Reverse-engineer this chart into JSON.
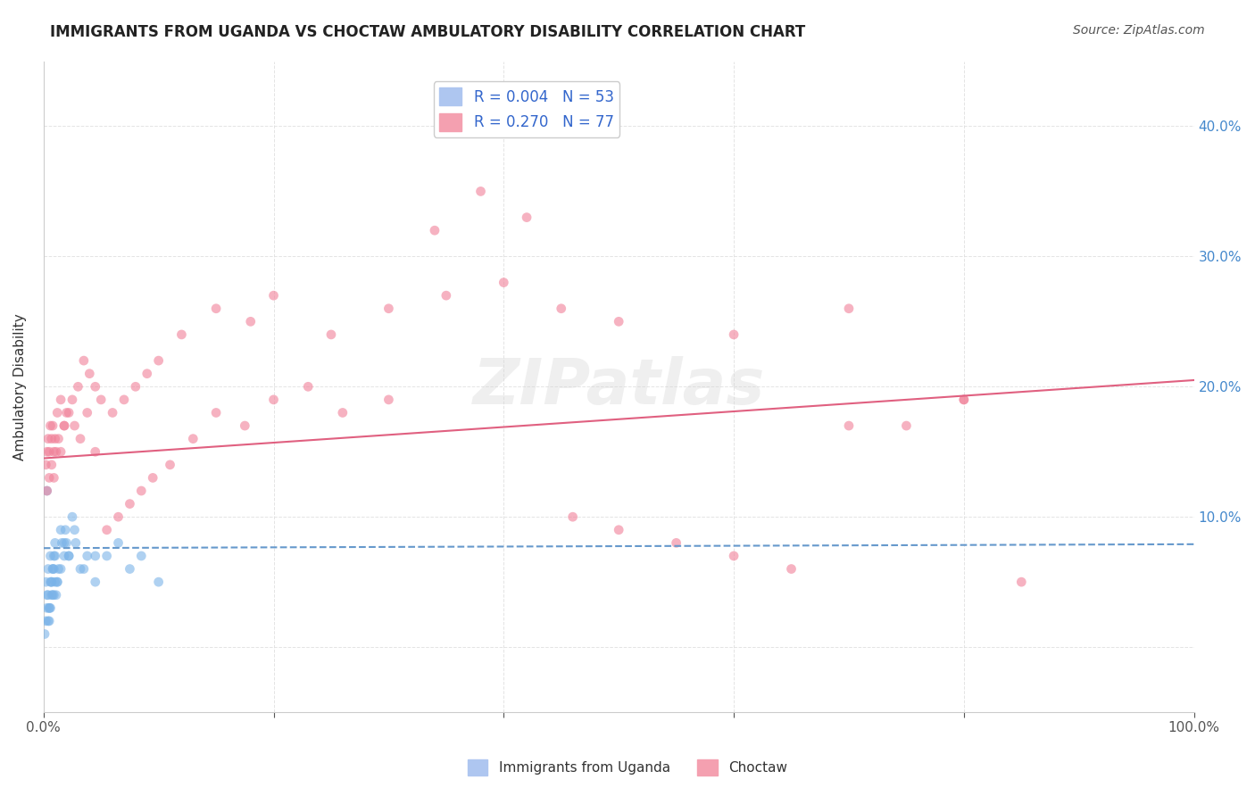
{
  "title": "IMMIGRANTS FROM UGANDA VS CHOCTAW AMBULATORY DISABILITY CORRELATION CHART",
  "source": "Source: ZipAtlas.com",
  "ylabel": "Ambulatory Disability",
  "xlabel": "",
  "xlim": [
    0,
    1.0
  ],
  "ylim": [
    -0.05,
    0.45
  ],
  "yticks": [
    0.0,
    0.1,
    0.2,
    0.3,
    0.4
  ],
  "ytick_labels": [
    "",
    "10.0%",
    "20.0%",
    "30.0%",
    "40.0%"
  ],
  "xticks": [
    0.0,
    0.2,
    0.4,
    0.6,
    0.8,
    1.0
  ],
  "xtick_labels": [
    "0.0%",
    "",
    "",
    "",
    "",
    "100.0%"
  ],
  "legend_entries": [
    {
      "label": "R = 0.004   N = 53",
      "color": "#aec6f0"
    },
    {
      "label": "R = 0.270   N = 77",
      "color": "#f4a0b0"
    }
  ],
  "blue_scatter_x": [
    0.002,
    0.003,
    0.004,
    0.005,
    0.006,
    0.007,
    0.008,
    0.009,
    0.01,
    0.012,
    0.015,
    0.018,
    0.02,
    0.025,
    0.003,
    0.004,
    0.005,
    0.006,
    0.007,
    0.008,
    0.009,
    0.01,
    0.011,
    0.013,
    0.016,
    0.019,
    0.022,
    0.028,
    0.035,
    0.045,
    0.001,
    0.002,
    0.003,
    0.004,
    0.005,
    0.006,
    0.007,
    0.008,
    0.009,
    0.01,
    0.012,
    0.015,
    0.018,
    0.022,
    0.027,
    0.032,
    0.038,
    0.045,
    0.055,
    0.065,
    0.075,
    0.085,
    0.1
  ],
  "blue_scatter_y": [
    0.05,
    0.04,
    0.06,
    0.03,
    0.07,
    0.05,
    0.04,
    0.06,
    0.08,
    0.05,
    0.09,
    0.07,
    0.08,
    0.1,
    0.12,
    0.02,
    0.03,
    0.05,
    0.04,
    0.06,
    0.07,
    0.05,
    0.04,
    0.06,
    0.08,
    0.09,
    0.07,
    0.08,
    0.06,
    0.07,
    0.01,
    0.02,
    0.03,
    0.04,
    0.02,
    0.03,
    0.05,
    0.06,
    0.04,
    0.07,
    0.05,
    0.06,
    0.08,
    0.07,
    0.09,
    0.06,
    0.07,
    0.05,
    0.07,
    0.08,
    0.06,
    0.07,
    0.05
  ],
  "pink_scatter_x": [
    0.002,
    0.003,
    0.004,
    0.005,
    0.006,
    0.007,
    0.008,
    0.009,
    0.01,
    0.012,
    0.015,
    0.018,
    0.02,
    0.025,
    0.03,
    0.035,
    0.04,
    0.045,
    0.05,
    0.06,
    0.07,
    0.08,
    0.09,
    0.1,
    0.12,
    0.15,
    0.18,
    0.2,
    0.25,
    0.3,
    0.35,
    0.4,
    0.45,
    0.5,
    0.6,
    0.7,
    0.8,
    0.003,
    0.005,
    0.007,
    0.009,
    0.011,
    0.013,
    0.015,
    0.018,
    0.022,
    0.027,
    0.032,
    0.038,
    0.045,
    0.055,
    0.065,
    0.075,
    0.085,
    0.095,
    0.11,
    0.13,
    0.15,
    0.175,
    0.2,
    0.23,
    0.26,
    0.3,
    0.34,
    0.38,
    0.42,
    0.46,
    0.5,
    0.55,
    0.6,
    0.65,
    0.7,
    0.75,
    0.8,
    0.85
  ],
  "pink_scatter_y": [
    0.14,
    0.15,
    0.16,
    0.15,
    0.17,
    0.16,
    0.17,
    0.15,
    0.16,
    0.18,
    0.19,
    0.17,
    0.18,
    0.19,
    0.2,
    0.22,
    0.21,
    0.2,
    0.19,
    0.18,
    0.19,
    0.2,
    0.21,
    0.22,
    0.24,
    0.26,
    0.25,
    0.27,
    0.24,
    0.26,
    0.27,
    0.28,
    0.26,
    0.25,
    0.24,
    0.26,
    0.19,
    0.12,
    0.13,
    0.14,
    0.13,
    0.15,
    0.16,
    0.15,
    0.17,
    0.18,
    0.17,
    0.16,
    0.18,
    0.15,
    0.09,
    0.1,
    0.11,
    0.12,
    0.13,
    0.14,
    0.16,
    0.18,
    0.17,
    0.19,
    0.2,
    0.18,
    0.19,
    0.32,
    0.35,
    0.33,
    0.1,
    0.09,
    0.08,
    0.07,
    0.06,
    0.17,
    0.17,
    0.19,
    0.05
  ],
  "blue_line_x": [
    0.0,
    1.0
  ],
  "blue_line_y": [
    0.076,
    0.079
  ],
  "pink_line_x": [
    0.0,
    1.0
  ],
  "pink_line_y": [
    0.145,
    0.205
  ],
  "blue_color": "#7ab3e8",
  "pink_color": "#f08098",
  "blue_line_color": "#6699cc",
  "pink_line_color": "#e06080",
  "watermark": "ZIPatlas",
  "background_color": "#ffffff",
  "grid_color": "#dddddd"
}
